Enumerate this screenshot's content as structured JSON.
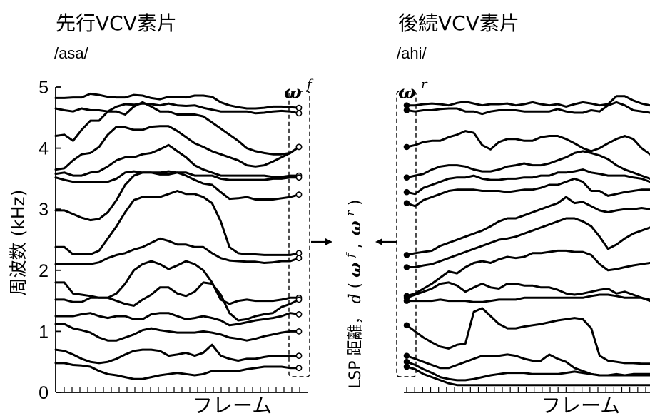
{
  "left": {
    "title": "先行VCV素片",
    "subtitle": "/asa/",
    "vector_symbol": "ω",
    "vector_sup": "f",
    "xlabel": "フレーム"
  },
  "right": {
    "title": "後続VCV素片",
    "subtitle": "/ahi/",
    "vector_symbol": "ω",
    "vector_sup": "r",
    "xlabel": "フレーム"
  },
  "ylabel": "周波数 (kHz)",
  "middle_label": {
    "prefix": "LSP 距離，",
    "func": "d",
    "open": "(",
    "v1": "ω",
    "s1": "f",
    "comma": ",",
    "v2": "ω",
    "s2": "r",
    "close": ")"
  },
  "chart_data": [
    {
      "type": "line",
      "title": "先行VCV素片",
      "subtitle": "/asa/",
      "xlabel": "フレーム",
      "ylabel": "周波数 (kHz)",
      "yticks": [
        0,
        1,
        2,
        3,
        4,
        5
      ],
      "ylim": [
        0,
        5
      ],
      "xlim": [
        0,
        29
      ],
      "end_markers": "hollow circles at last frame",
      "series": [
        {
          "values": [
            4.82,
            4.82,
            4.83,
            4.83,
            4.89,
            4.87,
            4.84,
            4.83,
            4.83,
            4.87,
            4.86,
            4.82,
            4.8,
            4.84,
            4.84,
            4.83,
            4.86,
            4.86,
            4.84,
            4.75,
            4.7,
            4.67,
            4.65,
            4.65,
            4.66,
            4.68,
            4.68,
            4.67,
            4.66
          ]
        },
        {
          "values": [
            4.65,
            4.62,
            4.6,
            4.65,
            4.62,
            4.62,
            4.6,
            4.68,
            4.72,
            4.71,
            4.73,
            4.72,
            4.7,
            4.73,
            4.7,
            4.69,
            4.7,
            4.66,
            4.63,
            4.6,
            4.6,
            4.6,
            4.6,
            4.57,
            4.58,
            4.6,
            4.61,
            4.6,
            4.57
          ]
        },
        {
          "values": [
            4.2,
            4.22,
            4.12,
            4.3,
            4.45,
            4.45,
            4.6,
            4.6,
            4.55,
            4.68,
            4.75,
            4.68,
            4.6,
            4.6,
            4.55,
            4.55,
            4.55,
            4.52,
            4.42,
            4.32,
            4.22,
            4.12,
            4.0,
            3.95,
            3.92,
            3.9,
            3.9,
            3.92,
            4.02
          ]
        },
        {
          "values": [
            3.65,
            3.67,
            3.8,
            3.9,
            3.92,
            4.02,
            4.22,
            4.35,
            4.34,
            4.3,
            4.3,
            4.35,
            4.36,
            4.36,
            4.28,
            4.18,
            4.08,
            4.02,
            3.95,
            3.9,
            3.85,
            3.8,
            3.72,
            3.7,
            3.72,
            3.78,
            3.85,
            3.92,
            4.02
          ]
        },
        {
          "values": [
            3.58,
            3.6,
            3.55,
            3.55,
            3.6,
            3.62,
            3.7,
            3.8,
            3.85,
            3.85,
            3.9,
            3.92,
            3.98,
            4.05,
            3.95,
            3.85,
            3.72,
            3.65,
            3.6,
            3.55,
            3.55,
            3.55,
            3.55,
            3.55,
            3.55,
            3.53,
            3.53,
            3.55,
            3.55
          ]
        },
        {
          "values": [
            3.52,
            3.48,
            3.45,
            3.45,
            3.45,
            3.45,
            3.45,
            3.5,
            3.6,
            3.62,
            3.6,
            3.6,
            3.6,
            3.62,
            3.6,
            3.6,
            3.55,
            3.55,
            3.55,
            3.5,
            3.48,
            3.48,
            3.48,
            3.48,
            3.48,
            3.5,
            3.5,
            3.52,
            3.52
          ]
        },
        {
          "values": [
            2.98,
            2.98,
            2.92,
            2.86,
            2.82,
            2.84,
            2.95,
            3.15,
            3.4,
            3.55,
            3.6,
            3.6,
            3.57,
            3.57,
            3.6,
            3.55,
            3.48,
            3.42,
            3.4,
            3.28,
            3.17,
            3.18,
            3.2,
            3.16,
            3.16,
            3.16,
            3.18,
            3.2,
            3.24
          ]
        },
        {
          "values": [
            2.38,
            2.38,
            2.26,
            2.26,
            2.26,
            2.32,
            2.52,
            2.72,
            2.95,
            3.15,
            3.2,
            3.2,
            3.2,
            3.25,
            3.3,
            3.25,
            3.25,
            3.2,
            3.1,
            2.8,
            2.38,
            2.28,
            2.26,
            2.26,
            2.25,
            2.25,
            2.25,
            2.25,
            2.28
          ]
        },
        {
          "values": [
            2.1,
            2.1,
            2.1,
            2.1,
            2.1,
            2.13,
            2.2,
            2.25,
            2.28,
            2.34,
            2.38,
            2.45,
            2.52,
            2.48,
            2.42,
            2.42,
            2.38,
            2.38,
            2.28,
            2.2,
            2.16,
            2.15,
            2.14,
            2.14,
            2.12,
            2.13,
            2.15,
            2.15,
            2.2
          ]
        },
        {
          "values": [
            1.8,
            1.8,
            1.62,
            1.6,
            1.58,
            1.55,
            1.55,
            1.62,
            1.78,
            2.0,
            2.1,
            2.15,
            2.1,
            2.02,
            2.08,
            2.15,
            2.1,
            2.0,
            1.8,
            1.52,
            1.45,
            1.5,
            1.52,
            1.5,
            1.5,
            1.5,
            1.52,
            1.55,
            1.55
          ]
        },
        {
          "values": [
            1.52,
            1.52,
            1.48,
            1.48,
            1.55,
            1.55,
            1.55,
            1.5,
            1.45,
            1.42,
            1.52,
            1.6,
            1.72,
            1.72,
            1.62,
            1.58,
            1.65,
            1.8,
            1.78,
            1.6,
            1.3,
            1.18,
            1.2,
            1.25,
            1.28,
            1.3,
            1.4,
            1.45,
            1.52
          ]
        },
        {
          "values": [
            1.25,
            1.25,
            1.25,
            1.28,
            1.3,
            1.25,
            1.22,
            1.25,
            1.25,
            1.2,
            1.2,
            1.28,
            1.3,
            1.3,
            1.25,
            1.2,
            1.22,
            1.25,
            1.22,
            1.18,
            1.1,
            1.12,
            1.15,
            1.18,
            1.2,
            1.22,
            1.25,
            1.3,
            1.28
          ]
        },
        {
          "values": [
            1.12,
            1.12,
            1.05,
            1.02,
            0.98,
            0.9,
            0.85,
            0.85,
            0.9,
            0.95,
            1.02,
            1.05,
            1.02,
            1.0,
            0.98,
            0.98,
            0.98,
            1.0,
            0.98,
            0.95,
            0.9,
            0.88,
            0.85,
            0.88,
            0.92,
            0.95,
            0.98,
            1.0,
            1.0
          ]
        },
        {
          "values": [
            0.7,
            0.68,
            0.62,
            0.55,
            0.5,
            0.48,
            0.5,
            0.55,
            0.62,
            0.68,
            0.7,
            0.7,
            0.68,
            0.6,
            0.62,
            0.65,
            0.6,
            0.65,
            0.78,
            0.6,
            0.55,
            0.52,
            0.55,
            0.55,
            0.58,
            0.6,
            0.6,
            0.6,
            0.6
          ]
        },
        {
          "values": [
            0.48,
            0.48,
            0.45,
            0.44,
            0.42,
            0.35,
            0.3,
            0.28,
            0.25,
            0.22,
            0.22,
            0.25,
            0.28,
            0.3,
            0.32,
            0.3,
            0.28,
            0.3,
            0.35,
            0.35,
            0.35,
            0.35,
            0.38,
            0.4,
            0.42,
            0.42,
            0.42,
            0.4,
            0.4
          ]
        }
      ]
    },
    {
      "type": "line",
      "title": "後続VCV素片",
      "subtitle": "/ahi/",
      "xlabel": "フレーム",
      "ylim": [
        0,
        5
      ],
      "xlim": [
        0,
        29
      ],
      "start_markers": "filled circles at first frame",
      "series": [
        {
          "values": [
            4.7,
            4.7,
            4.72,
            4.73,
            4.72,
            4.7,
            4.74,
            4.76,
            4.73,
            4.7,
            4.72,
            4.72,
            4.73,
            4.7,
            4.72,
            4.75,
            4.72,
            4.7,
            4.72,
            4.68,
            4.72,
            4.75,
            4.73,
            4.7,
            4.72,
            4.85,
            4.85,
            4.78,
            4.73,
            4.7
          ]
        },
        {
          "values": [
            4.62,
            4.6,
            4.62,
            4.62,
            4.64,
            4.65,
            4.65,
            4.6,
            4.6,
            4.56,
            4.6,
            4.62,
            4.62,
            4.62,
            4.6,
            4.6,
            4.6,
            4.6,
            4.64,
            4.6,
            4.58,
            4.58,
            4.62,
            4.6,
            4.7,
            4.75,
            4.7,
            4.62,
            4.6,
            4.58
          ]
        },
        {
          "values": [
            4.02,
            4.05,
            4.1,
            4.12,
            4.12,
            4.18,
            4.22,
            4.28,
            4.25,
            4.05,
            3.98,
            4.1,
            4.15,
            4.15,
            4.12,
            4.12,
            4.18,
            4.2,
            4.2,
            4.15,
            4.08,
            4.0,
            3.95,
            4.0,
            4.08,
            4.15,
            4.2,
            4.15,
            4.0,
            3.9
          ]
        },
        {
          "values": [
            3.52,
            3.55,
            3.58,
            3.65,
            3.7,
            3.72,
            3.72,
            3.7,
            3.65,
            3.62,
            3.62,
            3.65,
            3.7,
            3.72,
            3.75,
            3.72,
            3.72,
            3.75,
            3.8,
            3.85,
            3.92,
            3.95,
            3.92,
            3.88,
            3.82,
            3.72,
            3.65,
            3.6,
            3.55,
            3.5
          ]
        },
        {
          "values": [
            3.28,
            3.25,
            3.35,
            3.4,
            3.45,
            3.5,
            3.52,
            3.52,
            3.55,
            3.5,
            3.48,
            3.48,
            3.5,
            3.5,
            3.52,
            3.52,
            3.55,
            3.55,
            3.6,
            3.6,
            3.62,
            3.65,
            3.6,
            3.58,
            3.55,
            3.55,
            3.55,
            3.52,
            3.5,
            3.45
          ]
        },
        {
          "values": [
            3.1,
            3.05,
            3.15,
            3.2,
            3.25,
            3.3,
            3.32,
            3.32,
            3.32,
            3.3,
            3.3,
            3.3,
            3.28,
            3.3,
            3.32,
            3.32,
            3.35,
            3.4,
            3.4,
            3.45,
            3.5,
            3.45,
            3.3,
            3.3,
            3.22,
            3.25,
            3.28,
            3.3,
            3.32,
            3.32
          ]
        },
        {
          "values": [
            2.25,
            2.28,
            2.3,
            2.32,
            2.4,
            2.45,
            2.5,
            2.55,
            2.6,
            2.65,
            2.72,
            2.8,
            2.85,
            2.85,
            2.9,
            2.95,
            3.0,
            3.05,
            3.1,
            3.2,
            3.1,
            3.12,
            3.05,
            2.98,
            2.95,
            2.98,
            3.0,
            3.0,
            3.02,
            3.0
          ]
        },
        {
          "values": [
            2.05,
            2.05,
            2.08,
            2.1,
            2.15,
            2.2,
            2.25,
            2.3,
            2.35,
            2.4,
            2.45,
            2.5,
            2.52,
            2.55,
            2.6,
            2.65,
            2.7,
            2.75,
            2.8,
            2.85,
            2.85,
            2.8,
            2.72,
            2.55,
            2.35,
            2.42,
            2.52,
            2.6,
            2.65,
            2.7
          ]
        },
        {
          "values": [
            1.58,
            1.62,
            1.7,
            1.78,
            1.88,
            1.98,
            1.95,
            2.05,
            2.12,
            2.15,
            2.12,
            2.18,
            2.22,
            2.2,
            2.22,
            2.28,
            2.28,
            2.3,
            2.32,
            2.32,
            2.3,
            2.3,
            2.25,
            2.1,
            2.0,
            2.02,
            2.05,
            2.08,
            2.1,
            2.12
          ]
        },
        {
          "values": [
            1.55,
            1.6,
            1.65,
            1.7,
            1.78,
            1.8,
            1.75,
            1.65,
            1.72,
            1.78,
            1.72,
            1.7,
            1.78,
            1.78,
            1.75,
            1.75,
            1.72,
            1.72,
            1.68,
            1.62,
            1.6,
            1.62,
            1.65,
            1.68,
            1.7,
            1.62,
            1.65,
            1.6,
            1.55,
            1.5
          ]
        },
        {
          "values": [
            1.5,
            1.5,
            1.5,
            1.5,
            1.52,
            1.5,
            1.5,
            1.5,
            1.48,
            1.48,
            1.5,
            1.52,
            1.52,
            1.52,
            1.55,
            1.55,
            1.55,
            1.55,
            1.55,
            1.55,
            1.55,
            1.55,
            1.58,
            1.6,
            1.6,
            1.58,
            1.55,
            1.55,
            1.55,
            1.52
          ]
        },
        {
          "values": [
            1.1,
            1.0,
            0.9,
            0.82,
            0.75,
            0.72,
            0.78,
            0.8,
            1.32,
            1.38,
            1.25,
            1.12,
            1.05,
            1.05,
            1.08,
            1.1,
            1.12,
            1.15,
            1.18,
            1.2,
            1.22,
            1.2,
            1.05,
            0.6,
            0.52,
            0.5,
            0.48,
            0.48,
            0.47,
            0.47
          ]
        },
        {
          "values": [
            0.6,
            0.55,
            0.5,
            0.45,
            0.4,
            0.4,
            0.45,
            0.5,
            0.55,
            0.6,
            0.6,
            0.6,
            0.62,
            0.6,
            0.55,
            0.52,
            0.52,
            0.62,
            0.55,
            0.5,
            0.4,
            0.35,
            0.3,
            0.28,
            0.28,
            0.28,
            0.28,
            0.28,
            0.28,
            0.28
          ]
        },
        {
          "values": [
            0.5,
            0.45,
            0.38,
            0.32,
            0.25,
            0.22,
            0.2,
            0.2,
            0.22,
            0.25,
            0.28,
            0.3,
            0.32,
            0.32,
            0.32,
            0.3,
            0.3,
            0.3,
            0.3,
            0.32,
            0.34,
            0.32,
            0.3,
            0.28,
            0.28,
            0.3,
            0.28,
            0.3,
            0.3,
            0.3
          ]
        },
        {
          "values": [
            0.42,
            0.38,
            0.3,
            0.25,
            0.2,
            0.15,
            0.12,
            0.12,
            0.12,
            0.12,
            0.12,
            0.12,
            0.12,
            0.12,
            0.12,
            0.12,
            0.12,
            0.12,
            0.12,
            0.12,
            0.12,
            0.12,
            0.12,
            0.12,
            0.12,
            0.12,
            0.12,
            0.12,
            0.12,
            0.12
          ]
        }
      ]
    }
  ]
}
